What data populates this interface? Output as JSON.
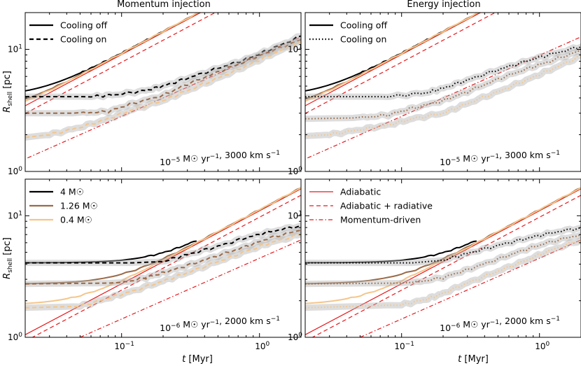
{
  "chart_data": {
    "type": "line",
    "scale": "log-log",
    "xlabel": "t [Myr]",
    "ylabel": "R_shell [pc]",
    "xlim": [
      0.02,
      2
    ],
    "ylim": [
      1,
      20
    ],
    "column_titles": [
      "Momentum injection",
      "Energy injection"
    ],
    "x_ticks": [
      {
        "value": 0.1,
        "base": "10",
        "exp": "−1"
      },
      {
        "value": 1,
        "base": "10",
        "exp": "0"
      }
    ],
    "y_ticks": [
      {
        "value": 1,
        "base": "10",
        "exp": "0"
      },
      {
        "value": 10,
        "base": "10",
        "exp": "1"
      }
    ],
    "colors": {
      "4": "#000000",
      "1.26": "#9a6a48",
      "0.4": "#f5c58a",
      "analytic": "#e8191d",
      "shadow": "#b4b4b4"
    },
    "panels": [
      {
        "position": "top-left",
        "injection": "momentum",
        "annotation": "10^-5 M☉ yr^-1, 3000 km s^-1",
        "legend": {
          "kind": "cooling",
          "items": [
            {
              "label": "Cooling off",
              "style": "solid",
              "color": "#000000"
            },
            {
              "label": "Cooling on",
              "style": "dashed",
              "color": "#000000"
            }
          ]
        },
        "analytic": {
          "adiabatic": [
            0.018,
            3.24,
            0.6
          ],
          "adiabatic_radiative": [
            0.018,
            2.8,
            0.6
          ],
          "momentum_driven": [
            0.018,
            1.2,
            0.5
          ]
        },
        "series": [
          {
            "mass": "4",
            "cooling": "off",
            "style": "solid",
            "t0": 0.02,
            "r0": 4.1,
            "knee": 0.05,
            "tend": 0.2,
            "dev": []
          },
          {
            "mass": "1.26",
            "cooling": "off",
            "style": "solid",
            "t0": 0.02,
            "r0": 3.0,
            "knee": 0.03,
            "tend": 2,
            "dev": []
          },
          {
            "mass": "0.4",
            "cooling": "off",
            "style": "solid",
            "t0": 0.02,
            "r0": 2.6,
            "knee": 0.02,
            "tend": 2,
            "dev": []
          },
          {
            "mass": "4",
            "cooling": "on",
            "style": "dashed",
            "t0": 0.02,
            "r0": 4.1,
            "knee": 0.06,
            "tend": 2,
            "shadow": true,
            "dev": [
              [
                0.02,
                4.1
              ],
              [
                0.06,
                4.1
              ],
              [
                0.09,
                4.25
              ],
              [
                0.15,
                4.6
              ],
              [
                0.2,
                5.0
              ],
              [
                0.3,
                5.8
              ],
              [
                0.5,
                7.0
              ],
              [
                0.8,
                8.3
              ],
              [
                1.2,
                10.0
              ],
              [
                2,
                12.8
              ]
            ]
          },
          {
            "mass": "1.26",
            "cooling": "on",
            "style": "dashed",
            "t0": 0.02,
            "r0": 3.0,
            "knee": 0.05,
            "tend": 2,
            "shadow": true,
            "dev": [
              [
                0.02,
                3.0
              ],
              [
                0.05,
                3.0
              ],
              [
                0.08,
                3.1
              ],
              [
                0.12,
                3.6
              ],
              [
                0.2,
                4.2
              ],
              [
                0.3,
                5.2
              ],
              [
                0.5,
                6.5
              ],
              [
                0.8,
                8.0
              ],
              [
                1.2,
                9.6
              ],
              [
                2,
                12.0
              ]
            ]
          },
          {
            "mass": "0.4",
            "cooling": "on",
            "style": "dashed",
            "t0": 0.02,
            "r0": 1.9,
            "knee": 0.03,
            "tend": 2,
            "shadow": true,
            "dev": [
              [
                0.02,
                1.9
              ],
              [
                0.03,
                2.0
              ],
              [
                0.05,
                2.3
              ],
              [
                0.08,
                2.7
              ],
              [
                0.12,
                3.2
              ],
              [
                0.2,
                3.8
              ],
              [
                0.3,
                4.6
              ],
              [
                0.5,
                5.8
              ],
              [
                0.8,
                7.3
              ],
              [
                1.2,
                9.0
              ],
              [
                2,
                11.5
              ]
            ]
          }
        ]
      },
      {
        "position": "top-right",
        "injection": "energy",
        "annotation": "10^-5 M☉ yr^-1, 3000 km s^-1",
        "legend": {
          "kind": "cooling",
          "items": [
            {
              "label": "Cooling off",
              "style": "solid",
              "color": "#000000"
            },
            {
              "label": "Cooling on",
              "style": "dotted",
              "color": "#000000"
            }
          ]
        },
        "analytic": {
          "adiabatic": [
            0.018,
            3.24,
            0.6
          ],
          "adiabatic_radiative": [
            0.018,
            2.8,
            0.6
          ],
          "momentum_driven": [
            0.018,
            1.2,
            0.5
          ]
        },
        "series": [
          {
            "mass": "4",
            "cooling": "off",
            "style": "solid",
            "t0": 0.02,
            "r0": 4.1,
            "knee": 0.05,
            "tend": 0.2,
            "dev": []
          },
          {
            "mass": "1.26",
            "cooling": "off",
            "style": "solid",
            "t0": 0.02,
            "r0": 3.0,
            "knee": 0.03,
            "tend": 2,
            "dev": []
          },
          {
            "mass": "0.4",
            "cooling": "off",
            "style": "solid",
            "t0": 0.02,
            "r0": 2.6,
            "knee": 0.02,
            "tend": 2,
            "dev": []
          },
          {
            "mass": "4",
            "cooling": "on",
            "style": "dotted",
            "t0": 0.02,
            "r0": 4.1,
            "knee": 0.08,
            "tend": 2,
            "shadow": true,
            "dev": [
              [
                0.02,
                4.1
              ],
              [
                0.08,
                4.1
              ],
              [
                0.15,
                4.4
              ],
              [
                0.2,
                4.8
              ],
              [
                0.3,
                5.6
              ],
              [
                0.5,
                6.8
              ],
              [
                0.8,
                8.0
              ],
              [
                1.2,
                9.1
              ],
              [
                2,
                10.5
              ]
            ]
          },
          {
            "mass": "1.26",
            "cooling": "on",
            "style": "dotted",
            "t0": 0.02,
            "r0": 2.7,
            "knee": 0.05,
            "tend": 2,
            "shadow": true,
            "dev": [
              [
                0.02,
                2.7
              ],
              [
                0.05,
                2.75
              ],
              [
                0.08,
                2.9
              ],
              [
                0.12,
                3.3
              ],
              [
                0.2,
                3.8
              ],
              [
                0.3,
                4.5
              ],
              [
                0.5,
                5.7
              ],
              [
                0.8,
                6.9
              ],
              [
                1.2,
                8.0
              ],
              [
                2,
                9.8
              ]
            ]
          },
          {
            "mass": "0.4",
            "cooling": "on",
            "style": "dotted",
            "t0": 0.02,
            "r0": 1.95,
            "knee": 0.03,
            "tend": 2,
            "shadow": true,
            "dev": [
              [
                0.02,
                1.95
              ],
              [
                0.03,
                2.0
              ],
              [
                0.05,
                2.2
              ],
              [
                0.08,
                2.4
              ],
              [
                0.12,
                2.7
              ],
              [
                0.2,
                3.0
              ],
              [
                0.3,
                3.6
              ],
              [
                0.5,
                4.5
              ],
              [
                0.8,
                5.6
              ],
              [
                1.2,
                6.8
              ],
              [
                2,
                8.8
              ]
            ]
          }
        ]
      },
      {
        "position": "bottom-left",
        "injection": "momentum",
        "annotation": "10^-6 M☉ yr^-1, 2000 km s^-1",
        "legend": {
          "kind": "mass",
          "items": [
            {
              "label": "4 M☉",
              "style": "solid",
              "color": "#000000"
            },
            {
              "label": "1.26 M☉",
              "style": "solid",
              "color": "#9a6a48"
            },
            {
              "label": "0.4 M☉",
              "style": "solid",
              "color": "#f5c58a"
            }
          ]
        },
        "analytic": {
          "adiabatic": [
            0.02,
            1.05,
            0.6
          ],
          "adiabatic_radiative": [
            0.02,
            0.93,
            0.6
          ],
          "momentum_driven": [
            0.05,
            1.0,
            0.5
          ]
        },
        "series": [
          {
            "mass": "4",
            "cooling": "off",
            "style": "solid",
            "t0": 0.02,
            "r0": 4.1,
            "knee": 0.15,
            "tend": 0.35,
            "dev": []
          },
          {
            "mass": "1.26",
            "cooling": "off",
            "style": "solid",
            "t0": 0.02,
            "r0": 2.75,
            "knee": 0.08,
            "tend": 2,
            "dev": []
          },
          {
            "mass": "0.4",
            "cooling": "off",
            "style": "solid",
            "t0": 0.02,
            "r0": 1.85,
            "knee": 0.04,
            "tend": 2,
            "dev": []
          },
          {
            "mass": "4",
            "cooling": "on",
            "style": "dashed",
            "t0": 0.02,
            "r0": 4.1,
            "knee": 0.2,
            "tend": 2,
            "shadow": true,
            "dev": [
              [
                0.02,
                4.1
              ],
              [
                0.12,
                4.1
              ],
              [
                0.2,
                4.2
              ],
              [
                0.3,
                4.8
              ],
              [
                0.5,
                5.6
              ],
              [
                0.8,
                6.6
              ],
              [
                1.2,
                7.4
              ],
              [
                2,
                8.3
              ]
            ]
          },
          {
            "mass": "1.26",
            "cooling": "on",
            "style": "dashed",
            "t0": 0.02,
            "r0": 2.75,
            "knee": 0.1,
            "tend": 2,
            "shadow": true,
            "dev": [
              [
                0.02,
                2.75
              ],
              [
                0.1,
                2.8
              ],
              [
                0.15,
                3.1
              ],
              [
                0.2,
                3.4
              ],
              [
                0.3,
                3.9
              ],
              [
                0.5,
                4.7
              ],
              [
                0.8,
                5.6
              ],
              [
                1.2,
                6.6
              ],
              [
                2,
                7.6
              ]
            ]
          },
          {
            "mass": "0.4",
            "cooling": "on",
            "style": "dashed",
            "t0": 0.02,
            "r0": 1.75,
            "knee": 0.05,
            "tend": 2,
            "shadow": true,
            "dev": [
              [
                0.02,
                1.75
              ],
              [
                0.05,
                1.8
              ],
              [
                0.08,
                2.1
              ],
              [
                0.12,
                2.4
              ],
              [
                0.2,
                2.9
              ],
              [
                0.3,
                3.4
              ],
              [
                0.5,
                4.2
              ],
              [
                0.8,
                5.1
              ],
              [
                1.2,
                6.0
              ],
              [
                2,
                7.0
              ]
            ]
          }
        ]
      },
      {
        "position": "bottom-right",
        "injection": "energy",
        "annotation": "10^-6 M☉ yr^-1, 2000 km s^-1",
        "legend": {
          "kind": "model",
          "items": [
            {
              "label": "Adiabatic",
              "style": "solid",
              "color": "#e8191d"
            },
            {
              "label": "Adiabatic + radiative",
              "style": "dashed",
              "color": "#e8191d"
            },
            {
              "label": "Momentum-driven",
              "style": "dashdot",
              "color": "#e8191d"
            }
          ]
        },
        "analytic": {
          "adiabatic": [
            0.02,
            1.05,
            0.6
          ],
          "adiabatic_radiative": [
            0.02,
            0.93,
            0.6
          ],
          "momentum_driven": [
            0.05,
            1.0,
            0.5
          ]
        },
        "series": [
          {
            "mass": "4",
            "cooling": "off",
            "style": "solid",
            "t0": 0.02,
            "r0": 4.1,
            "knee": 0.15,
            "tend": 0.35,
            "dev": []
          },
          {
            "mass": "1.26",
            "cooling": "off",
            "style": "solid",
            "t0": 0.02,
            "r0": 2.75,
            "knee": 0.08,
            "tend": 2,
            "dev": []
          },
          {
            "mass": "0.4",
            "cooling": "off",
            "style": "solid",
            "t0": 0.02,
            "r0": 1.85,
            "knee": 0.04,
            "tend": 2,
            "dev": []
          },
          {
            "mass": "4",
            "cooling": "on",
            "style": "dotted",
            "t0": 0.02,
            "r0": 4.1,
            "knee": 0.2,
            "tend": 2,
            "shadow": true,
            "dev": [
              [
                0.02,
                4.1
              ],
              [
                0.12,
                4.1
              ],
              [
                0.2,
                4.3
              ],
              [
                0.3,
                4.9
              ],
              [
                0.5,
                5.7
              ],
              [
                0.8,
                6.5
              ],
              [
                1.2,
                7.2
              ],
              [
                2,
                8.0
              ]
            ]
          },
          {
            "mass": "1.26",
            "cooling": "on",
            "style": "dotted",
            "t0": 0.02,
            "r0": 2.75,
            "knee": 0.12,
            "tend": 2,
            "shadow": true,
            "dev": [
              [
                0.02,
                2.75
              ],
              [
                0.12,
                2.8
              ],
              [
                0.2,
                3.1
              ],
              [
                0.3,
                3.6
              ],
              [
                0.5,
                4.4
              ],
              [
                0.8,
                5.3
              ],
              [
                1.2,
                6.1
              ],
              [
                2,
                7.0
              ]
            ]
          },
          {
            "mass": "0.4",
            "cooling": "on",
            "style": "dotted",
            "t0": 0.02,
            "r0": 1.75,
            "knee": 0.1,
            "tend": 2,
            "shadow": true,
            "dev": [
              [
                0.02,
                1.75
              ],
              [
                0.1,
                1.85
              ],
              [
                0.15,
                2.05
              ],
              [
                0.2,
                2.3
              ],
              [
                0.3,
                2.8
              ],
              [
                0.5,
                3.5
              ],
              [
                0.8,
                4.3
              ],
              [
                1.2,
                5.2
              ],
              [
                2,
                6.3
              ]
            ]
          }
        ]
      }
    ]
  }
}
